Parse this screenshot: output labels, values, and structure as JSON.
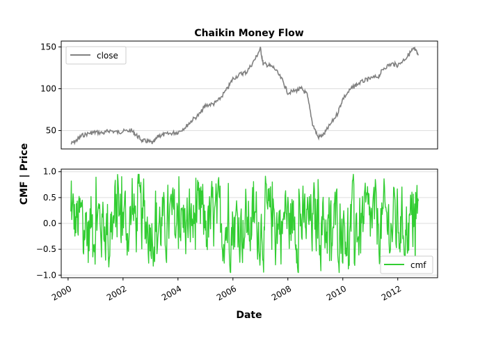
{
  "chart_data": [
    {
      "type": "line",
      "title": "Chaikin Money Flow",
      "ylabel": "CMF | Price",
      "xlim": [
        1999.75,
        2013.45
      ],
      "ylim": [
        28,
        157
      ],
      "yticks": [
        50,
        100,
        150
      ],
      "xticks": [
        2000,
        2002,
        2004,
        2006,
        2008,
        2010,
        2012
      ],
      "grid": "horizontal",
      "legend": "top-left",
      "series": [
        {
          "name": "close",
          "color": "#808080",
          "x": [
            2000.1,
            2000.3,
            2000.5,
            2000.8,
            2001.0,
            2001.3,
            2001.5,
            2001.8,
            2002.0,
            2002.3,
            2002.5,
            2002.7,
            2002.9,
            2003.1,
            2003.3,
            2003.5,
            2003.8,
            2004.0,
            2004.3,
            2004.5,
            2004.8,
            2005.0,
            2005.3,
            2005.5,
            2005.8,
            2006.0,
            2006.3,
            2006.5,
            2006.8,
            2007.0,
            2007.1,
            2007.3,
            2007.5,
            2007.8,
            2008.0,
            2008.3,
            2008.5,
            2008.7,
            2008.9,
            2009.1,
            2009.3,
            2009.5,
            2009.8,
            2010.0,
            2010.3,
            2010.5,
            2010.8,
            2011.0,
            2011.3,
            2011.5,
            2011.8,
            2012.0,
            2012.3,
            2012.5,
            2012.6,
            2012.75
          ],
          "values": [
            34,
            38,
            44,
            47,
            48,
            47,
            50,
            48,
            49,
            50,
            44,
            38,
            37,
            35,
            44,
            45,
            47,
            48,
            55,
            62,
            70,
            80,
            82,
            87,
            100,
            112,
            118,
            120,
            135,
            148,
            130,
            128,
            125,
            110,
            95,
            98,
            100,
            93,
            58,
            42,
            45,
            55,
            70,
            88,
            100,
            105,
            110,
            112,
            115,
            125,
            130,
            128,
            137,
            145,
            148,
            140
          ]
        }
      ]
    },
    {
      "type": "line",
      "xlabel": "Date",
      "xlim": [
        1999.75,
        2013.45
      ],
      "ylim": [
        -1.05,
        1.05
      ],
      "yticks": [
        -1.0,
        -0.5,
        0.0,
        0.5,
        1.0
      ],
      "xticks": [
        2000,
        2002,
        2004,
        2006,
        2008,
        2010,
        2012
      ],
      "grid": "horizontal",
      "legend": "bottom-right",
      "series": [
        {
          "name": "cmf",
          "color": "#32cd32",
          "x_start": 2000.1,
          "x_end": 2012.75,
          "amplitude_range": [
            -0.95,
            0.95
          ]
        }
      ]
    }
  ],
  "ticks": {
    "x": [
      "2000",
      "2002",
      "2004",
      "2006",
      "2008",
      "2010",
      "2012"
    ],
    "y_top": [
      "50",
      "100",
      "150"
    ],
    "y_bottom": [
      "−1.0",
      "−0.5",
      "0.0",
      "0.5",
      "1.0"
    ]
  },
  "text": {
    "title": "Chaikin Money Flow",
    "ylabel": "CMF | Price",
    "xlabel": "Date",
    "legend_close": "close",
    "legend_cmf": "cmf"
  }
}
